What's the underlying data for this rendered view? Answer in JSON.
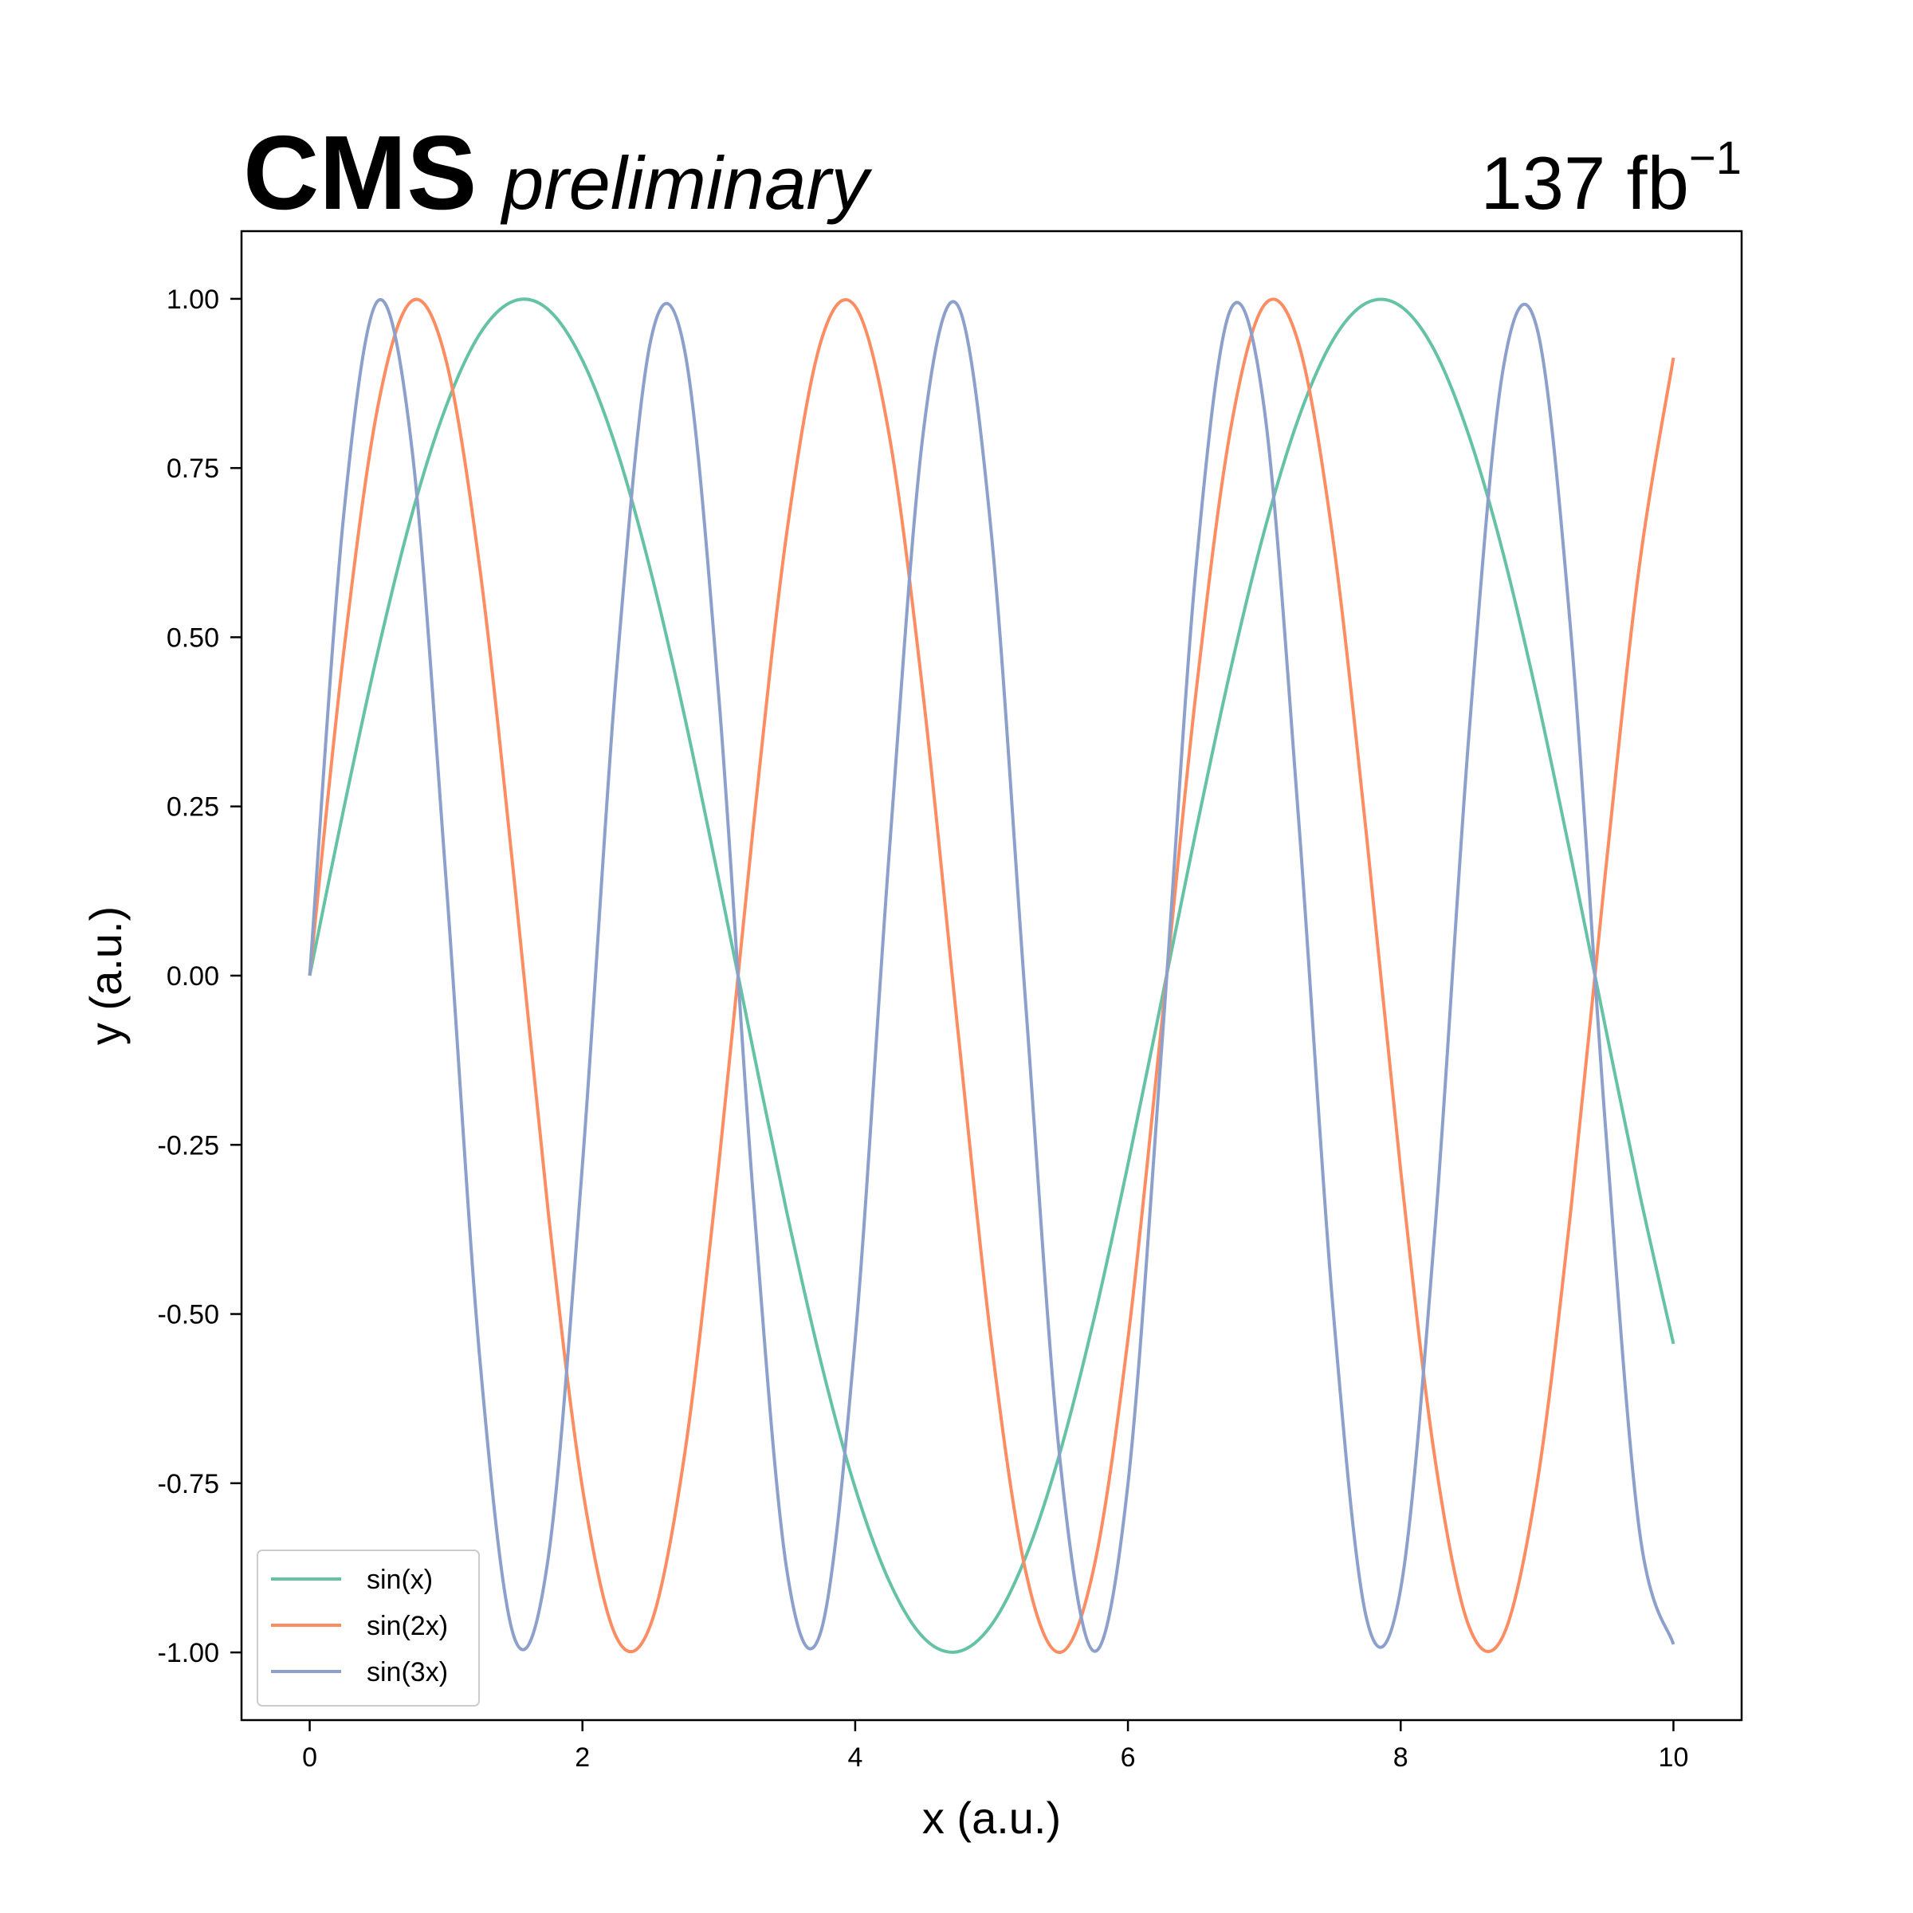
{
  "header": {
    "experiment": "CMS",
    "status": "preliminary",
    "luminosity": "137 fb",
    "luminosity_superscript": "−1"
  },
  "chart_data": {
    "type": "line",
    "title": "",
    "xlabel": "x (a.u.)",
    "ylabel": "y (a.u.)",
    "xlim": [
      -0.5,
      10.5
    ],
    "ylim": [
      -1.1,
      1.1
    ],
    "x_ticks": [
      0,
      2,
      4,
      6,
      8,
      10
    ],
    "x_tick_labels": [
      "0",
      "2",
      "4",
      "6",
      "8",
      "10"
    ],
    "y_ticks": [
      1.0,
      0.75,
      0.5,
      0.25,
      0.0,
      -0.25,
      -0.5,
      -0.75,
      -1.0
    ],
    "y_tick_labels": [
      "1.00",
      "0.75",
      "0.50",
      "0.25",
      "0.00",
      "-0.25",
      "-0.50",
      "-0.75",
      "-1.00"
    ],
    "grid": false,
    "legend_position": "bottom-left",
    "x": [
      0,
      0.25,
      0.5,
      0.75,
      1,
      1.25,
      1.5,
      1.75,
      2,
      2.25,
      2.5,
      2.75,
      3,
      3.25,
      3.5,
      3.75,
      4,
      4.25,
      4.5,
      4.75,
      5,
      5.25,
      5.5,
      5.75,
      6,
      6.25,
      6.5,
      6.75,
      7,
      7.25,
      7.5,
      7.75,
      8,
      8.25,
      8.5,
      8.75,
      9,
      9.25,
      9.5,
      9.75,
      10
    ],
    "series": [
      {
        "name": "sin(x)",
        "color": "#66c2a5",
        "values": [
          0,
          0.247,
          0.479,
          0.682,
          0.841,
          0.949,
          0.997,
          0.984,
          0.909,
          0.778,
          0.598,
          0.382,
          0.141,
          -0.108,
          -0.351,
          -0.572,
          -0.757,
          -0.895,
          -0.978,
          -0.999,
          -0.959,
          -0.859,
          -0.706,
          -0.508,
          -0.279,
          -0.033,
          0.215,
          0.45,
          0.657,
          0.823,
          0.938,
          0.994,
          0.989,
          0.923,
          0.798,
          0.625,
          0.412,
          0.174,
          -0.075,
          -0.32,
          -0.544
        ]
      },
      {
        "name": "sin(2x)",
        "color": "#fc8d62",
        "values": [
          0,
          0.479,
          0.841,
          0.997,
          0.909,
          0.598,
          0.141,
          -0.351,
          -0.757,
          -0.978,
          -0.959,
          -0.706,
          -0.279,
          0.215,
          0.657,
          0.938,
          0.989,
          0.798,
          0.412,
          -0.075,
          -0.544,
          -0.88,
          -1.0,
          -0.875,
          -0.537,
          -0.066,
          0.42,
          0.804,
          0.991,
          0.935,
          0.65,
          0.206,
          -0.288,
          -0.712,
          -0.961,
          -0.976,
          -0.751,
          -0.342,
          0.15,
          0.605,
          0.913
        ]
      },
      {
        "name": "sin(3x)",
        "color": "#8da0cb",
        "values": [
          0,
          0.682,
          0.997,
          0.778,
          0.141,
          -0.572,
          -0.978,
          -0.859,
          -0.279,
          0.45,
          0.938,
          0.923,
          0.412,
          -0.32,
          -0.88,
          -0.968,
          -0.537,
          0.183,
          0.804,
          0.991,
          0.65,
          -0.041,
          -0.712,
          -0.998,
          -0.751,
          -0.099,
          0.605,
          0.983,
          0.837,
          0.235,
          -0.483,
          -0.95,
          -0.906,
          -0.378,
          0.355,
          0.895,
          0.956,
          0.502,
          -0.219,
          -0.819,
          -0.988
        ]
      }
    ]
  }
}
